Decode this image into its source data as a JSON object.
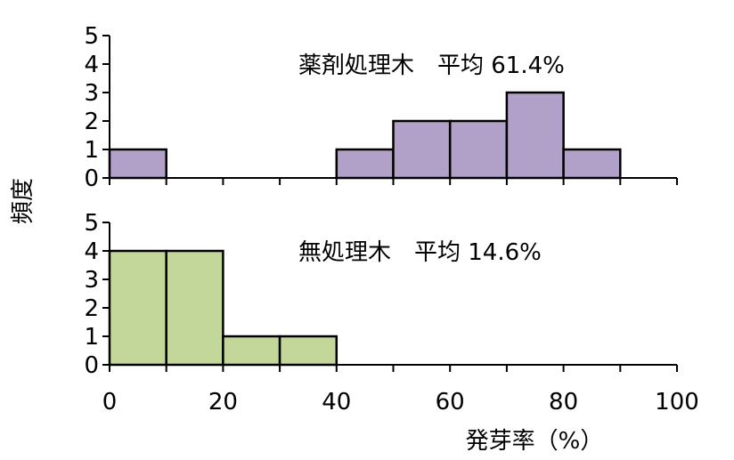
{
  "chart_data": [
    {
      "type": "bar",
      "variant": "histogram",
      "bin_edges": [
        0,
        10,
        20,
        30,
        40,
        50,
        60,
        70,
        80,
        90,
        100
      ],
      "values": [
        1,
        0,
        0,
        0,
        1,
        2,
        2,
        3,
        1,
        0
      ],
      "xlim": [
        0,
        100
      ],
      "ylim": [
        0,
        5
      ],
      "yticks": [
        0,
        1,
        2,
        3,
        4,
        5
      ],
      "annotation": "薬剤処理木　平均 61.4%",
      "color": "#B1A0C7"
    },
    {
      "type": "bar",
      "variant": "histogram",
      "bin_edges": [
        0,
        10,
        20,
        30,
        40,
        50,
        60,
        70,
        80,
        90,
        100
      ],
      "values": [
        4,
        4,
        1,
        1,
        0,
        0,
        0,
        0,
        0,
        0
      ],
      "xlim": [
        0,
        100
      ],
      "ylim": [
        0,
        5
      ],
      "yticks": [
        0,
        1,
        2,
        3,
        4,
        5
      ],
      "xticks": [
        0,
        20,
        40,
        60,
        80,
        100
      ],
      "annotation": "無処理木　平均 14.6%",
      "color": "#C4D79B"
    }
  ],
  "shared": {
    "xlabel": "発芽率（%）",
    "ylabel": "頻度"
  }
}
